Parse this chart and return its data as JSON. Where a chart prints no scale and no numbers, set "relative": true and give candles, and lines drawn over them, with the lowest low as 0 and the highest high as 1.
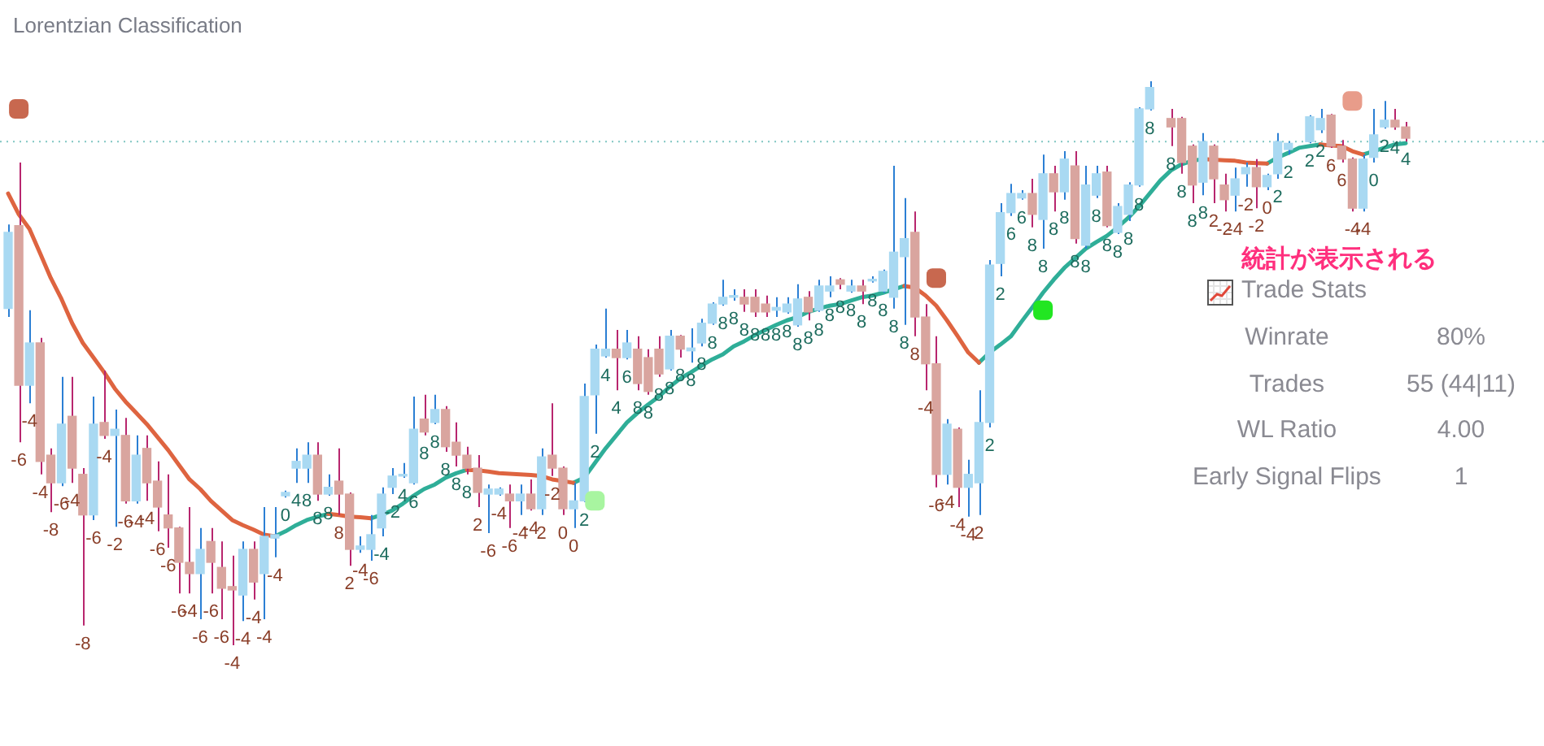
{
  "chart_data": {
    "type": "candlestick",
    "title": "Lorentzian Classification",
    "relative": true,
    "categories": [
      null,
      null,
      null,
      null,
      null,
      null,
      null,
      null,
      null,
      null,
      null,
      null,
      null,
      null,
      null,
      null,
      null,
      null,
      null,
      null,
      null,
      null,
      null,
      null,
      null,
      null,
      null,
      null,
      null,
      null,
      null,
      null,
      null,
      null,
      null,
      null,
      null,
      null,
      null,
      null,
      null,
      null,
      null,
      null,
      null,
      null,
      null,
      null,
      null,
      null,
      null,
      null,
      null,
      null,
      null,
      null,
      null,
      null,
      null,
      null,
      null,
      null,
      null,
      null,
      null,
      null,
      null,
      null,
      null,
      null,
      null,
      null,
      null,
      null,
      null,
      null,
      null,
      null,
      null,
      null,
      null,
      null,
      null,
      null,
      null,
      null,
      null,
      null,
      null,
      null,
      null,
      null,
      null,
      null,
      null,
      null,
      null,
      null,
      null,
      null,
      null,
      null,
      null,
      null,
      null,
      null,
      null,
      null,
      null,
      null,
      null,
      null,
      null,
      null,
      null,
      null,
      null,
      null,
      null,
      null,
      null,
      null,
      null,
      null,
      null,
      null,
      null,
      null,
      null,
      null,
      null,
      null
    ],
    "ohlc": [
      [
        0.597,
        0.746,
        0.582,
        0.732
      ],
      [
        0.744,
        0.856,
        0.36,
        0.461
      ],
      [
        0.461,
        0.594,
        0.429,
        0.536
      ],
      [
        0.536,
        0.545,
        0.303,
        0.326
      ],
      [
        0.337,
        0.349,
        0.236,
        0.288
      ],
      [
        0.288,
        0.476,
        0.282,
        0.392
      ],
      [
        0.406,
        0.476,
        0.288,
        0.314
      ],
      [
        0.303,
        0.314,
        0.035,
        0.231
      ],
      [
        0.231,
        0.441,
        0.222,
        0.392
      ],
      [
        0.395,
        0.487,
        0.366,
        0.372
      ],
      [
        0.372,
        0.418,
        0.21,
        0.383
      ],
      [
        0.372,
        0.403,
        0.251,
        0.256
      ],
      [
        0.256,
        0.372,
        0.251,
        0.337
      ],
      [
        0.349,
        0.372,
        0.256,
        0.288
      ],
      [
        0.291,
        0.326,
        0.202,
        0.245
      ],
      [
        0.231,
        0.303,
        0.173,
        0.208
      ],
      [
        0.208,
        0.21,
        0.092,
        0.147
      ],
      [
        0.147,
        0.245,
        0.092,
        0.127
      ],
      [
        0.127,
        0.208,
        0.046,
        0.17
      ],
      [
        0.184,
        0.208,
        0.092,
        0.147
      ],
      [
        0.138,
        0.184,
        0.046,
        0.101
      ],
      [
        0.104,
        0.159,
        0,
        0.098
      ],
      [
        0.089,
        0.184,
        0.043,
        0.17
      ],
      [
        0.17,
        0.184,
        0.081,
        0.112
      ],
      [
        0.127,
        0.245,
        0.046,
        0.193
      ],
      [
        0.19,
        0.245,
        0.156,
        0.196
      ],
      [
        0.265,
        0.274,
        0.262,
        0.271
      ],
      [
        0.314,
        0.349,
        0.288,
        0.326
      ],
      [
        0.314,
        0.36,
        0.288,
        0.337
      ],
      [
        0.337,
        0.36,
        0.256,
        0.268
      ],
      [
        0.268,
        0.303,
        0.265,
        0.28
      ],
      [
        0.291,
        0.349,
        0.231,
        0.268
      ],
      [
        0.268,
        0.271,
        0.141,
        0.17
      ],
      [
        0.17,
        0.193,
        0.164,
        0.176
      ],
      [
        0.17,
        0.231,
        0.15,
        0.196
      ],
      [
        0.208,
        0.28,
        0.193,
        0.268
      ],
      [
        0.28,
        0.314,
        0.268,
        0.3
      ],
      [
        0.3,
        0.323,
        0.297,
        0.303
      ],
      [
        0.288,
        0.441,
        0.285,
        0.383
      ],
      [
        0.401,
        0.444,
        0.372,
        0.378
      ],
      [
        0.395,
        0.444,
        0.392,
        0.418
      ],
      [
        0.418,
        0.424,
        0.343,
        0.352
      ],
      [
        0.36,
        0.395,
        0.317,
        0.337
      ],
      [
        0.337,
        0.352,
        0.303,
        0.314
      ],
      [
        0.314,
        0.337,
        0.245,
        0.271
      ],
      [
        0.268,
        0.285,
        0.199,
        0.277
      ],
      [
        0.268,
        0.28,
        0.265,
        0.277
      ],
      [
        0.268,
        0.285,
        0.208,
        0.256
      ],
      [
        0.256,
        0.285,
        0.231,
        0.268
      ],
      [
        0.268,
        0.294,
        0.239,
        0.242
      ],
      [
        0.242,
        0.349,
        0.231,
        0.334
      ],
      [
        0.337,
        0.429,
        0.3,
        0.314
      ],
      [
        0.314,
        0.317,
        0.231,
        0.242
      ],
      [
        0.242,
        0.288,
        0.208,
        0.256
      ],
      [
        0.256,
        0.464,
        0.254,
        0.441
      ],
      [
        0.444,
        0.533,
        0.375,
        0.525
      ],
      [
        0.513,
        0.597,
        0.51,
        0.525
      ],
      [
        0.525,
        0.559,
        0.452,
        0.51
      ],
      [
        0.51,
        0.559,
        0.507,
        0.536
      ],
      [
        0.525,
        0.548,
        0.452,
        0.464
      ],
      [
        0.51,
        0.525,
        0.444,
        0.45
      ],
      [
        0.525,
        0.548,
        0.476,
        0.481
      ],
      [
        0.49,
        0.559,
        0.487,
        0.548
      ],
      [
        0.548,
        0.55,
        0.51,
        0.525
      ],
      [
        0.522,
        0.562,
        0.501,
        0.527
      ],
      [
        0.536,
        0.579,
        0.53,
        0.571
      ],
      [
        0.571,
        0.608,
        0.568,
        0.605
      ],
      [
        0.605,
        0.648,
        0.602,
        0.617
      ],
      [
        0.617,
        0.631,
        0.611,
        0.62
      ],
      [
        0.617,
        0.631,
        0.591,
        0.605
      ],
      [
        0.617,
        0.631,
        0.582,
        0.591
      ],
      [
        0.605,
        0.62,
        0.582,
        0.591
      ],
      [
        0.594,
        0.617,
        0.582,
        0.599
      ],
      [
        0.591,
        0.617,
        0.588,
        0.605
      ],
      [
        0.568,
        0.64,
        0.565,
        0.614
      ],
      [
        0.617,
        0.628,
        0.576,
        0.591
      ],
      [
        0.594,
        0.648,
        0.591,
        0.637
      ],
      [
        0.628,
        0.654,
        0.617,
        0.637
      ],
      [
        0.648,
        0.651,
        0.631,
        0.64
      ],
      [
        0.628,
        0.648,
        0.625,
        0.637
      ],
      [
        0.637,
        0.648,
        0.605,
        0.628
      ],
      [
        0.646,
        0.654,
        0.643,
        0.648
      ],
      [
        0.628,
        0.666,
        0.625,
        0.663
      ],
      [
        0.617,
        0.85,
        0.597,
        0.697
      ],
      [
        0.689,
        0.793,
        0.568,
        0.721
      ],
      [
        0.732,
        0.769,
        0.548,
        0.582
      ],
      [
        0.582,
        0.605,
        0.452,
        0.499
      ],
      [
        0.499,
        0.548,
        0.28,
        0.303
      ],
      [
        0.303,
        0.401,
        0.285,
        0.392
      ],
      [
        0.383,
        0.386,
        0.245,
        0.28
      ],
      [
        0.28,
        0.329,
        0.228,
        0.303
      ],
      [
        0.288,
        0.452,
        0.231,
        0.395
      ],
      [
        0.395,
        0.683,
        0.386,
        0.674
      ],
      [
        0.677,
        0.784,
        0.654,
        0.767
      ],
      [
        0.767,
        0.818,
        0.761,
        0.801
      ],
      [
        0.793,
        0.807,
        0.79,
        0.801
      ],
      [
        0.801,
        0.827,
        0.741,
        0.764
      ],
      [
        0.755,
        0.87,
        0.703,
        0.836
      ],
      [
        0.836,
        0.85,
        0.769,
        0.804
      ],
      [
        0.804,
        0.876,
        0.79,
        0.862
      ],
      [
        0.85,
        0.876,
        0.712,
        0.721
      ],
      [
        0.709,
        0.85,
        0.703,
        0.816
      ],
      [
        0.798,
        0.85,
        0.793,
        0.836
      ],
      [
        0.839,
        0.85,
        0.741,
        0.744
      ],
      [
        0.732,
        0.784,
        0.729,
        0.778
      ],
      [
        0.764,
        0.821,
        0.752,
        0.816
      ],
      [
        0.816,
        0.954,
        0.813,
        0.951
      ],
      [
        0.951,
        1,
        0.948,
        0.989
      ],
      null,
      [
        0.934,
        0.951,
        0.885,
        0.919
      ],
      [
        0.934,
        0.937,
        0.836,
        0.856
      ],
      [
        0.885,
        0.888,
        0.784,
        0.816
      ],
      [
        0.821,
        0.908,
        0.798,
        0.893
      ],
      [
        0.885,
        0.888,
        0.784,
        0.827
      ],
      [
        0.816,
        0.836,
        0.769,
        0.79
      ],
      [
        0.798,
        0.847,
        0.769,
        0.827
      ],
      [
        0.836,
        0.856,
        0.813,
        0.847
      ],
      [
        0.847,
        0.862,
        0.775,
        0.813
      ],
      [
        0.813,
        0.836,
        0.807,
        0.833
      ],
      [
        0.836,
        0.908,
        0.827,
        0.893
      ],
      [
        0.879,
        0.893,
        0.87,
        0.89
      ],
      null,
      [
        0.893,
        0.94,
        0.89,
        0.937
      ],
      [
        0.914,
        0.951,
        0.908,
        0.934
      ],
      [
        0.94,
        0.942,
        0.882,
        0.885
      ],
      [
        0.885,
        0.896,
        0.856,
        0.862
      ],
      [
        0.862,
        0.865,
        0.769,
        0.775
      ],
      [
        0.775,
        0.87,
        0.769,
        0.862
      ],
      [
        0.865,
        0.951,
        0.856,
        0.905
      ],
      [
        0.919,
        0.965,
        0.916,
        0.931
      ],
      [
        0.931,
        0.951,
        0.914,
        0.919
      ],
      [
        0.919,
        0.928,
        0.893,
        0.899
      ]
    ],
    "colors": [
      "#a9d9f2",
      "#d9a59f",
      "#a9d9f2",
      "#d9a59f",
      "#d9a59f",
      "#a9d9f2",
      "#d9a59f",
      "#d9a59f",
      "#a9d9f2",
      "#d9a59f",
      "#a9d9f2",
      "#d9a59f",
      "#a9d9f2",
      "#d9a59f",
      "#d9a59f",
      "#d9a59f",
      "#d9a59f",
      "#d9a59f",
      "#a9d9f2",
      "#d9a59f",
      "#d9a59f",
      "#d9a59f",
      "#a9d9f2",
      "#d9a59f",
      "#a9d9f2",
      "#a9d9f2",
      "#a9d9f2",
      "#a9d9f2",
      "#a9d9f2",
      "#d9a59f",
      "#a9d9f2",
      "#d9a59f",
      "#d9a59f",
      "#a9d9f2",
      "#a9d9f2",
      "#a9d9f2",
      "#a9d9f2",
      "#a9d9f2",
      "#a9d9f2",
      "#d9a59f",
      "#a9d9f2",
      "#d9a59f",
      "#d9a59f",
      "#d9a59f",
      "#d9a59f",
      "#a9d9f2",
      "#a9d9f2",
      "#d9a59f",
      "#a9d9f2",
      "#d9a59f",
      "#a9d9f2",
      "#d9a59f",
      "#d9a59f",
      "#a9d9f2",
      "#a9d9f2",
      "#a9d9f2",
      "#a9d9f2",
      "#d9a59f",
      "#a9d9f2",
      "#d9a59f",
      "#d9a59f",
      "#d9a59f",
      "#a9d9f2",
      "#d9a59f",
      "#a9d9f2",
      "#a9d9f2",
      "#a9d9f2",
      "#a9d9f2",
      "#a9d9f2",
      "#d9a59f",
      "#d9a59f",
      "#d9a59f",
      "#a9d9f2",
      "#a9d9f2",
      "#a9d9f2",
      "#d9a59f",
      "#a9d9f2",
      "#a9d9f2",
      "#d9a59f",
      "#a9d9f2",
      "#d9a59f",
      "#a9d9f2",
      "#a9d9f2",
      "#a9d9f2",
      "#a9d9f2",
      "#d9a59f",
      "#d9a59f",
      "#d9a59f",
      "#a9d9f2",
      "#d9a59f",
      "#a9d9f2",
      "#a9d9f2",
      "#a9d9f2",
      "#a9d9f2",
      "#a9d9f2",
      "#a9d9f2",
      "#d9a59f",
      "#a9d9f2",
      "#d9a59f",
      "#a9d9f2",
      "#d9a59f",
      "#a9d9f2",
      "#a9d9f2",
      "#d9a59f",
      "#a9d9f2",
      "#a9d9f2",
      "#a9d9f2",
      "#a9d9f2",
      null,
      "#d9a59f",
      "#d9a59f",
      "#d9a59f",
      "#a9d9f2",
      "#d9a59f",
      "#d9a59f",
      "#a9d9f2",
      "#a9d9f2",
      "#d9a59f",
      "#a9d9f2",
      "#a9d9f2",
      "#a9d9f2",
      null,
      "#a9d9f2",
      "#a9d9f2",
      "#d9a59f",
      "#d9a59f",
      "#d9a59f",
      "#a9d9f2",
      "#a9d9f2",
      "#a9d9f2",
      "#d9a59f",
      "#d9a59f"
    ],
    "value_labels": [
      null,
      "-6",
      "-4",
      "-4",
      "-8",
      "-6",
      "-4",
      "-8",
      "-6",
      "-4",
      "-2",
      "-6",
      "-4",
      "-4",
      "-6",
      "-6",
      "-6",
      "-4",
      "-6",
      "-6",
      "-6",
      "-4",
      "-4",
      "-4",
      "-4",
      "-4",
      "0",
      "4",
      "8",
      "8",
      "8",
      "8",
      "2",
      "-4",
      "-6",
      "-4",
      "-2",
      "4",
      "6",
      "8",
      "8",
      "8",
      "8",
      "8",
      "2",
      "-6",
      "-4",
      "-6",
      "-4",
      "-4",
      "2",
      "-2",
      "0",
      "0",
      "2",
      "2",
      "4",
      "4",
      "6",
      "8",
      "8",
      "8",
      "8",
      "8",
      "8",
      "8",
      "8",
      "8",
      "8",
      "8",
      "8",
      "8",
      "8",
      "8",
      "8",
      "8",
      "8",
      "8",
      "8",
      "8",
      "8",
      "8",
      "8",
      "8",
      "8",
      "8",
      "-4",
      "-6",
      "-4",
      "-4",
      "-4",
      "2",
      "2",
      "2",
      "6",
      "6",
      "8",
      "8",
      "8",
      "8",
      "8",
      "8",
      "8",
      "8",
      "8",
      "8",
      "8",
      "8",
      null,
      "8",
      "8",
      "8",
      "8",
      "2",
      "-2",
      "-4",
      "-2",
      "-2",
      "0",
      "2",
      "2",
      null,
      "2",
      "2",
      "6",
      "6",
      "-4",
      "-4",
      "0",
      "2",
      "4",
      "4"
    ],
    "series": [
      {
        "type": "line",
        "color": "#de6440",
        "values": [
          0.801,
          0.764,
          0.738,
          0.695,
          0.651,
          0.614,
          0.571,
          0.536,
          0.51,
          0.484,
          0.455,
          0.432,
          0.412,
          0.392,
          0.369,
          0.346,
          0.32,
          0.294,
          0.277,
          0.256,
          0.239,
          0.222,
          0.213,
          0.205,
          0.196,
          0.193,
          null,
          null,
          null,
          null,
          0.233,
          0.231,
          0.228,
          0.227,
          0.225,
          null,
          null,
          null,
          null,
          null,
          null,
          null,
          null,
          0.311,
          0.31,
          0.308,
          0.305,
          0.304,
          0.303,
          0.302,
          0.3,
          0.294,
          0.291,
          0.288,
          null,
          null,
          null,
          null,
          null,
          null,
          null,
          null,
          null,
          null,
          null,
          null,
          null,
          null,
          null,
          null,
          null,
          null,
          null,
          null,
          null,
          null,
          null,
          null,
          null,
          null,
          null,
          null,
          null,
          null,
          0.637,
          0.634,
          0.62,
          0.602,
          0.576,
          0.548,
          0.519,
          0.501,
          null,
          null,
          null,
          null,
          null,
          null,
          null,
          null,
          null,
          null,
          null,
          null,
          null,
          null,
          null,
          null,
          null,
          null,
          null,
          null,
          0.862,
          0.861,
          0.86,
          0.859,
          0.856,
          0.855,
          0.854,
          null,
          null,
          null,
          null,
          0.888,
          0.886,
          0.885,
          0.876,
          0.87,
          null,
          null,
          null,
          null
        ]
      },
      {
        "type": "line",
        "color": "#2fae98",
        "values": [
          null,
          null,
          null,
          null,
          null,
          null,
          null,
          null,
          null,
          null,
          null,
          null,
          null,
          null,
          null,
          null,
          null,
          null,
          null,
          null,
          null,
          null,
          null,
          null,
          null,
          0.193,
          0.202,
          0.213,
          0.222,
          0.228,
          0.233,
          null,
          null,
          null,
          0.225,
          0.231,
          0.239,
          0.251,
          0.265,
          0.277,
          0.285,
          0.297,
          0.305,
          0.311,
          null,
          null,
          null,
          null,
          null,
          null,
          null,
          null,
          null,
          0.288,
          0.297,
          0.323,
          0.349,
          0.372,
          0.395,
          0.412,
          0.427,
          0.441,
          0.458,
          0.473,
          0.484,
          0.496,
          0.507,
          0.516,
          0.53,
          0.539,
          0.55,
          0.559,
          0.568,
          0.576,
          0.582,
          0.591,
          0.597,
          0.602,
          0.605,
          0.611,
          0.617,
          0.62,
          0.625,
          0.631,
          0.637,
          null,
          null,
          null,
          null,
          null,
          null,
          0.501,
          0.519,
          0.533,
          0.548,
          0.574,
          0.599,
          0.625,
          0.648,
          0.669,
          0.686,
          0.703,
          0.715,
          0.726,
          0.741,
          0.758,
          0.778,
          0.801,
          0.824,
          0.842,
          0.853,
          0.859,
          0.862,
          null,
          null,
          null,
          null,
          null,
          0.854,
          0.865,
          0.873,
          0.882,
          0.885,
          0.888,
          null,
          null,
          null,
          0.87,
          0.876,
          0.882,
          0.888,
          0.89
        ]
      },
      {
        "type": "scatter",
        "marker": "square",
        "values": [
          null,
          0.951,
          null,
          null,
          null,
          null,
          null,
          null,
          null,
          null,
          null,
          null,
          null,
          null,
          null,
          null,
          null,
          null,
          null,
          null,
          null,
          null,
          null,
          null,
          null,
          null,
          null,
          null,
          null,
          null,
          null,
          null,
          null,
          null,
          null,
          null,
          null,
          null,
          null,
          null,
          null,
          null,
          null,
          null,
          null,
          null,
          null,
          null,
          null,
          null,
          null,
          null,
          null,
          null,
          null,
          null,
          null,
          null,
          null,
          null,
          null,
          null,
          null,
          null,
          null,
          null,
          null,
          null,
          null,
          null,
          null,
          null,
          null,
          null,
          null,
          null,
          null,
          null,
          null,
          null,
          null,
          null,
          null,
          null,
          null,
          null,
          null,
          0.651,
          null,
          null,
          null,
          null,
          null,
          null,
          null,
          null,
          null,
          null,
          null,
          null,
          null,
          null,
          null,
          null,
          null,
          null,
          null,
          null,
          null,
          null,
          null,
          null,
          null,
          null,
          null,
          null,
          null,
          null,
          null,
          null,
          null,
          null,
          null,
          null,
          null,
          null,
          0.965,
          null,
          null,
          null,
          null,
          null
        ],
        "colors": [
          null,
          "#c8684f",
          null,
          null,
          null,
          null,
          null,
          null,
          null,
          null,
          null,
          null,
          null,
          null,
          null,
          null,
          null,
          null,
          null,
          null,
          null,
          null,
          null,
          null,
          null,
          null,
          null,
          null,
          null,
          null,
          null,
          null,
          null,
          null,
          null,
          null,
          null,
          null,
          null,
          null,
          null,
          null,
          null,
          null,
          null,
          null,
          null,
          null,
          null,
          null,
          null,
          null,
          null,
          null,
          null,
          null,
          null,
          null,
          null,
          null,
          null,
          null,
          null,
          null,
          null,
          null,
          null,
          null,
          null,
          null,
          null,
          null,
          null,
          null,
          null,
          null,
          null,
          null,
          null,
          null,
          null,
          null,
          null,
          null,
          null,
          null,
          null,
          "#c8684f",
          null,
          null,
          null,
          null,
          null,
          null,
          null,
          null,
          null,
          null,
          null,
          null,
          null,
          null,
          null,
          null,
          null,
          null,
          null,
          null,
          null,
          null,
          null,
          null,
          null,
          null,
          null,
          null,
          null,
          null,
          null,
          null,
          null,
          null,
          null,
          null,
          null,
          null,
          "#e89c8a",
          null,
          null,
          null,
          null,
          null
        ]
      },
      {
        "type": "scatter",
        "marker": "square",
        "values": [
          null,
          null,
          null,
          null,
          null,
          null,
          null,
          null,
          null,
          null,
          null,
          null,
          null,
          null,
          null,
          null,
          null,
          null,
          null,
          null,
          null,
          null,
          null,
          null,
          null,
          null,
          null,
          null,
          null,
          null,
          null,
          null,
          null,
          null,
          null,
          null,
          null,
          null,
          null,
          null,
          null,
          null,
          null,
          null,
          null,
          null,
          null,
          null,
          null,
          null,
          null,
          null,
          null,
          null,
          null,
          0.256,
          null,
          null,
          null,
          null,
          null,
          null,
          null,
          null,
          null,
          null,
          null,
          null,
          null,
          null,
          null,
          null,
          null,
          null,
          null,
          null,
          null,
          null,
          null,
          null,
          null,
          null,
          null,
          null,
          null,
          null,
          null,
          null,
          null,
          null,
          null,
          null,
          null,
          null,
          null,
          null,
          null,
          0.594,
          null,
          null,
          null,
          null,
          null,
          null,
          null,
          null,
          null,
          null,
          null,
          null,
          null,
          null,
          null,
          null,
          null,
          null,
          null,
          null,
          null,
          null,
          null,
          null,
          null,
          null,
          null,
          null,
          null,
          null,
          null,
          null,
          null,
          null
        ],
        "colors": [
          null,
          null,
          null,
          null,
          null,
          null,
          null,
          null,
          null,
          null,
          null,
          null,
          null,
          null,
          null,
          null,
          null,
          null,
          null,
          null,
          null,
          null,
          null,
          null,
          null,
          null,
          null,
          null,
          null,
          null,
          null,
          null,
          null,
          null,
          null,
          null,
          null,
          null,
          null,
          null,
          null,
          null,
          null,
          null,
          null,
          null,
          null,
          null,
          null,
          null,
          null,
          null,
          null,
          null,
          null,
          "#a8f5a0",
          null,
          null,
          null,
          null,
          null,
          null,
          null,
          null,
          null,
          null,
          null,
          null,
          null,
          null,
          null,
          null,
          null,
          null,
          null,
          null,
          null,
          null,
          null,
          null,
          null,
          null,
          null,
          null,
          null,
          null,
          null,
          null,
          null,
          null,
          null,
          null,
          null,
          null,
          null,
          null,
          null,
          "#22e622",
          null,
          null,
          null,
          null,
          null,
          null,
          null,
          null,
          null,
          null,
          null,
          null,
          null,
          null,
          null,
          null,
          null,
          null,
          null,
          null,
          null,
          null,
          null,
          null,
          null,
          null,
          null,
          null,
          null,
          null,
          null,
          null,
          null,
          null
        ]
      }
    ],
    "ref_lines": [
      {
        "axis": "y",
        "value": 0.893,
        "color": "#80c6c2",
        "line_style": "dotted"
      }
    ],
    "annotations": [
      "統計が表示される",
      "Trade Stats",
      "Winrate",
      "80%",
      "Trades",
      "55 (44|11)",
      "WL Ratio",
      "4.00",
      "Early Signal Flips",
      "1"
    ]
  }
}
